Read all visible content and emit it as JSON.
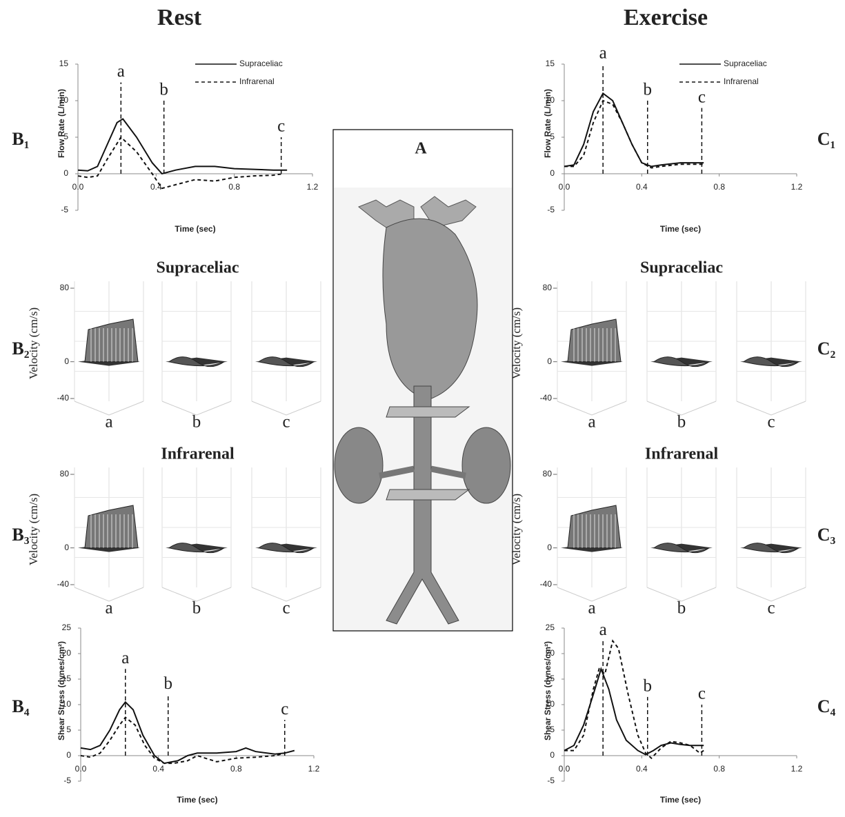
{
  "headers": [
    "Rest",
    "Exercise"
  ],
  "center_panel": "A",
  "chart_data": [
    {
      "type": "line",
      "panel": "B₁",
      "xlabel": "Time (sec)",
      "ylabel": "Flow Rate (L/min)",
      "xlim": [
        0,
        1.2
      ],
      "xticks": [
        {
          "value": 0,
          "label": "0.0"
        },
        0.4,
        0.8,
        1.2
      ],
      "ylim": [
        -5,
        15
      ],
      "yticks": [
        -5,
        0,
        5,
        10,
        15
      ],
      "legend": "upper right",
      "series": [
        {
          "name": "Supraceliac",
          "color": "#111111",
          "dash": false,
          "x": [
            0,
            0.05,
            0.1,
            0.15,
            0.2,
            0.23,
            0.3,
            0.38,
            0.43,
            0.5,
            0.6,
            0.7,
            0.8,
            0.9,
            1.0,
            1.07
          ],
          "values": [
            0.5,
            0.4,
            1,
            4,
            7,
            7.5,
            5,
            1.5,
            0,
            0.5,
            1,
            1,
            0.7,
            0.6,
            0.5,
            0.5
          ]
        },
        {
          "name": "Infrarenal",
          "color": "#111111",
          "dash": true,
          "x": [
            0,
            0.05,
            0.1,
            0.15,
            0.22,
            0.3,
            0.38,
            0.43,
            0.5,
            0.6,
            0.7,
            0.8,
            0.9,
            1.0,
            1.05
          ],
          "values": [
            -0.3,
            -0.5,
            -0.3,
            2,
            5,
            3,
            0,
            -2,
            -1.5,
            -0.8,
            -1,
            -0.5,
            -0.3,
            -0.2,
            0
          ]
        }
      ],
      "markers": [
        {
          "x": 0.22,
          "ymax": 12.5,
          "label": "a"
        },
        {
          "x": 0.44,
          "ymax": 10,
          "label": "b"
        },
        {
          "x": 1.04,
          "ymax": 5,
          "label": "c"
        }
      ]
    },
    {
      "type": "line",
      "panel": "C₁",
      "xlabel": "Time (sec)",
      "ylabel": "Flow Rate (L/min)",
      "xlim": [
        0,
        1.2
      ],
      "xticks": [
        {
          "value": 0,
          "label": "0.0"
        },
        0.4,
        0.8,
        1.2
      ],
      "ylim": [
        -5,
        15
      ],
      "yticks": [
        -5,
        0,
        5,
        10,
        15
      ],
      "legend": "upper right",
      "series": [
        {
          "name": "Supraceliac",
          "color": "#111111",
          "dash": false,
          "x": [
            0,
            0.05,
            0.1,
            0.15,
            0.2,
            0.25,
            0.3,
            0.35,
            0.4,
            0.45,
            0.5,
            0.6,
            0.72
          ],
          "values": [
            1,
            1.2,
            4,
            8.5,
            11,
            10,
            7,
            4,
            1.5,
            1,
            1.2,
            1.5,
            1.5
          ]
        },
        {
          "name": "Infrarenal",
          "color": "#111111",
          "dash": true,
          "x": [
            0,
            0.05,
            0.1,
            0.15,
            0.2,
            0.25,
            0.3,
            0.35,
            0.4,
            0.45,
            0.5,
            0.6,
            0.72
          ],
          "values": [
            1,
            1,
            2.5,
            7,
            10,
            9.5,
            7,
            4,
            1.5,
            0.8,
            1,
            1.3,
            1.3
          ]
        }
      ],
      "markers": [
        {
          "x": 0.2,
          "ymax": 15,
          "label": "a"
        },
        {
          "x": 0.43,
          "ymax": 10,
          "label": "b"
        },
        {
          "x": 0.71,
          "ymax": 9,
          "label": "c"
        }
      ]
    },
    {
      "type": "surface",
      "panel": "B₂",
      "title": "Supraceliac",
      "zlabel": "Velocity (cm/s)",
      "zlim": [
        -40,
        80
      ],
      "zticks": [
        -40,
        0,
        80
      ],
      "categories": [
        "a",
        "b",
        "c"
      ]
    },
    {
      "type": "surface",
      "panel": "B₃",
      "title": "Infrarenal",
      "zlabel": "Velocity (cm/s)",
      "zlim": [
        -40,
        80
      ],
      "zticks": [
        -40,
        0,
        80
      ],
      "categories": [
        "a",
        "b",
        "c"
      ]
    },
    {
      "type": "surface",
      "panel": "C₂",
      "title": "Supraceliac",
      "zlabel": "Velocity (cm/s)",
      "zlim": [
        -40,
        80
      ],
      "zticks": [
        -40,
        0,
        80
      ],
      "categories": [
        "a",
        "b",
        "c"
      ]
    },
    {
      "type": "surface",
      "panel": "C₃",
      "title": "Infrarenal",
      "zlabel": "Velocity (cm/s)",
      "zlim": [
        -40,
        80
      ],
      "zticks": [
        -40,
        0,
        80
      ],
      "categories": [
        "a",
        "b",
        "c"
      ]
    },
    {
      "type": "line",
      "panel": "B₄",
      "xlabel": "Time (sec)",
      "ylabel": "Shear Stress (dynes/cm²)",
      "xlim": [
        0,
        1.2
      ],
      "xticks": [
        {
          "value": 0,
          "label": "0.0"
        },
        0.4,
        0.8,
        1.2
      ],
      "ylim": [
        -5,
        25
      ],
      "yticks": [
        -5,
        0,
        5,
        10,
        15,
        20,
        25
      ],
      "series": [
        {
          "color": "#111111",
          "dash": false,
          "x": [
            0,
            0.05,
            0.1,
            0.15,
            0.2,
            0.23,
            0.27,
            0.32,
            0.38,
            0.43,
            0.5,
            0.55,
            0.6,
            0.7,
            0.8,
            0.85,
            0.9,
            1.0,
            1.05,
            1.1
          ],
          "values": [
            1.5,
            1.2,
            2,
            5,
            9,
            10.5,
            9,
            4,
            0,
            -1.5,
            -1,
            0,
            0.5,
            0.5,
            0.8,
            1.5,
            0.8,
            0.3,
            0.5,
            1
          ]
        },
        {
          "color": "#111111",
          "dash": true,
          "x": [
            0,
            0.05,
            0.1,
            0.15,
            0.2,
            0.23,
            0.28,
            0.33,
            0.38,
            0.43,
            0.48,
            0.55,
            0.6,
            0.7,
            0.8,
            0.9,
            1.0,
            1.05
          ],
          "values": [
            0,
            -0.3,
            0.5,
            3,
            6,
            7.5,
            6,
            2,
            -0.5,
            -1.5,
            -1.5,
            -1,
            0,
            -1.2,
            -0.5,
            -0.3,
            0,
            0.5
          ]
        }
      ],
      "markers": [
        {
          "x": 0.23,
          "ymax": 17,
          "label": "a"
        },
        {
          "x": 0.45,
          "ymax": 12,
          "label": "b"
        },
        {
          "x": 1.05,
          "ymax": 7,
          "label": "c"
        }
      ]
    },
    {
      "type": "line",
      "panel": "C₄",
      "xlabel": "Time (sec)",
      "ylabel": "Shear Stress (dynes/cm²)",
      "xlim": [
        0,
        1.2
      ],
      "xticks": [
        {
          "value": 0,
          "label": "0.0"
        },
        0.4,
        0.8,
        1.2
      ],
      "ylim": [
        -5,
        25
      ],
      "yticks": [
        -5,
        0,
        5,
        10,
        15,
        20,
        25
      ],
      "series": [
        {
          "color": "#111111",
          "dash": false,
          "x": [
            0,
            0.05,
            0.1,
            0.15,
            0.19,
            0.23,
            0.27,
            0.32,
            0.38,
            0.42,
            0.46,
            0.5,
            0.55,
            0.6,
            0.65,
            0.72
          ],
          "values": [
            1,
            2,
            6,
            12,
            17,
            13,
            7,
            3,
            1,
            0.2,
            1,
            2,
            2.5,
            2.2,
            2,
            2
          ]
        },
        {
          "color": "#111111",
          "dash": true,
          "x": [
            0,
            0.05,
            0.1,
            0.15,
            0.18,
            0.21,
            0.25,
            0.28,
            0.33,
            0.38,
            0.42,
            0.45,
            0.5,
            0.55,
            0.6,
            0.65,
            0.7,
            0.72
          ],
          "values": [
            1,
            1,
            4,
            13,
            17,
            16,
            22.5,
            21,
            12,
            4,
            0.5,
            -0.5,
            1.5,
            2.8,
            2.5,
            2,
            0.5,
            1
          ]
        }
      ],
      "markers": [
        {
          "x": 0.2,
          "ymax": 22.5,
          "label": "a"
        },
        {
          "x": 0.43,
          "ymax": 11.5,
          "label": "b"
        },
        {
          "x": 0.71,
          "ymax": 10,
          "label": "c"
        }
      ]
    }
  ]
}
